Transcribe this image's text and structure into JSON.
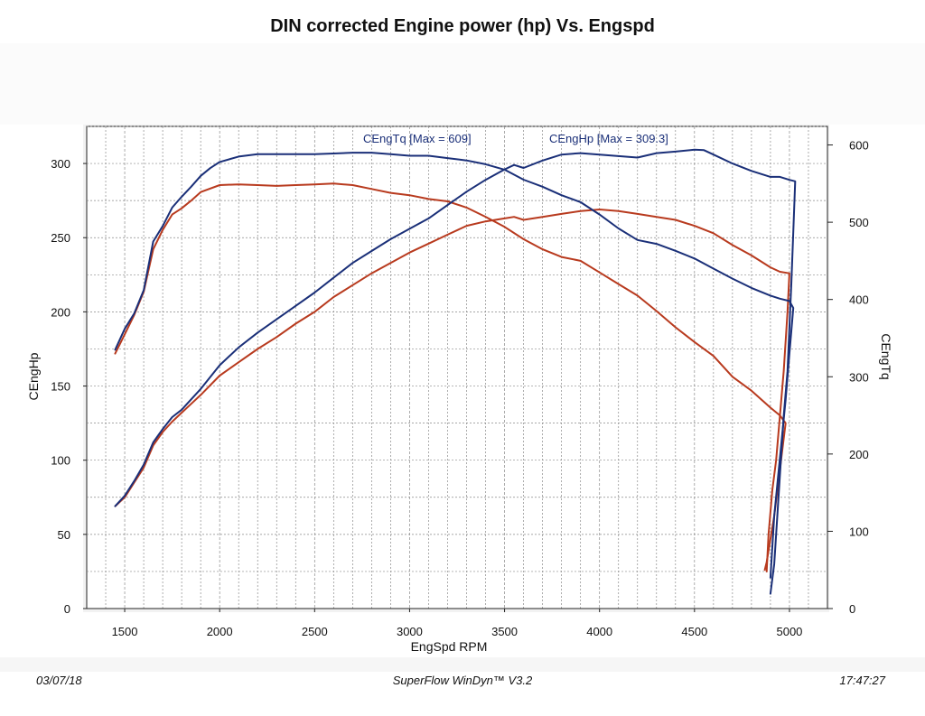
{
  "chart_data": {
    "type": "line",
    "title": "DIN corrected Engine power (hp) Vs. Engspd",
    "xlabel": "EngSpd RPM",
    "ylabel_left": "CEngHp",
    "ylabel_right": "CEngTq",
    "xlim": [
      1300,
      5200
    ],
    "ylim_left": [
      0,
      325
    ],
    "ylim_right": [
      0,
      624
    ],
    "xticks": [
      1500,
      2000,
      2500,
      3000,
      3500,
      4000,
      4500,
      5000
    ],
    "yticks_left": [
      0,
      50,
      100,
      150,
      200,
      250,
      300
    ],
    "yticks_right": [
      0,
      100,
      200,
      300,
      400,
      500,
      600
    ],
    "grid": true,
    "annotations": [
      "CEngTq [Max = 609]",
      "CEngHp [Max = 309.3]"
    ],
    "colors": {
      "run1": "#1a2f78",
      "run2": "#b83a1e"
    },
    "series": [
      {
        "axis": "left",
        "color": "#1a2f78",
        "x": [
          1450,
          1500,
          1550,
          1600,
          1650,
          1700,
          1750,
          1800,
          1850,
          1900,
          2000,
          2100,
          2200,
          2300,
          2400,
          2500,
          2600,
          2700,
          2800,
          2900,
          3000,
          3100,
          3200,
          3300,
          3400,
          3500,
          3550,
          3600,
          3700,
          3800,
          3900,
          4000,
          4100,
          4200,
          4300,
          4400,
          4500,
          4550,
          4600,
          4700,
          4800,
          4900,
          4950,
          5000,
          5030,
          5010,
          4990,
          4970,
          4960,
          4950,
          4940,
          4930,
          4920,
          4910,
          4900
        ],
        "y": [
          69,
          76,
          86,
          97,
          112,
          121,
          129,
          134,
          141,
          148,
          164,
          176,
          186,
          195,
          204,
          213,
          223,
          233,
          241,
          249,
          256,
          263,
          272,
          281,
          289,
          296,
          299,
          297,
          302,
          306,
          307,
          306,
          305,
          304,
          307,
          308,
          309.3,
          309,
          306,
          300,
          295,
          291,
          291,
          289,
          288,
          220,
          160,
          130,
          110,
          90,
          70,
          50,
          30,
          20,
          10
        ]
      },
      {
        "axis": "right",
        "color": "#1a2f78",
        "x": [
          1450,
          1500,
          1550,
          1600,
          1650,
          1700,
          1750,
          1800,
          1850,
          1900,
          1950,
          2000,
          2100,
          2200,
          2300,
          2400,
          2500,
          2600,
          2700,
          2800,
          2900,
          3000,
          3100,
          3200,
          3300,
          3400,
          3500,
          3600,
          3700,
          3800,
          3900,
          4000,
          4100,
          4200,
          4300,
          4400,
          4500,
          4600,
          4700,
          4800,
          4900,
          4950,
          5000,
          5020,
          5000,
          4980,
          4960,
          4940,
          4920,
          4910,
          4900
        ],
        "y": [
          335,
          362,
          382,
          412,
          475,
          495,
          519,
          533,
          546,
          560,
          570,
          578,
          585,
          588,
          588,
          588,
          588,
          589,
          590,
          590,
          588,
          586,
          586,
          583,
          580,
          575,
          568,
          555,
          546,
          535,
          526,
          510,
          492,
          477,
          472,
          463,
          453,
          440,
          427,
          415,
          405,
          401,
          398,
          389,
          330,
          270,
          220,
          170,
          120,
          80,
          40
        ]
      },
      {
        "axis": "left",
        "color": "#b83a1e",
        "x": [
          1450,
          1500,
          1550,
          1600,
          1650,
          1700,
          1750,
          1800,
          1850,
          1900,
          2000,
          2100,
          2200,
          2300,
          2400,
          2500,
          2600,
          2700,
          2800,
          2900,
          3000,
          3100,
          3200,
          3300,
          3400,
          3500,
          3550,
          3600,
          3700,
          3800,
          3900,
          4000,
          4100,
          4200,
          4300,
          4400,
          4500,
          4600,
          4700,
          4800,
          4900,
          4950,
          5000,
          4990,
          4970,
          4950,
          4930,
          4910,
          4890,
          4880
        ],
        "y": [
          69,
          75,
          85,
          95,
          110,
          119,
          126,
          132,
          138,
          144,
          157,
          166,
          175,
          183,
          192,
          200,
          210,
          218,
          226,
          233,
          240,
          246,
          252,
          258,
          261,
          263,
          264,
          262,
          264,
          266,
          268,
          269,
          268,
          266,
          264,
          262,
          258,
          253,
          245,
          238,
          230,
          227,
          226,
          200,
          160,
          130,
          100,
          80,
          50,
          25
        ]
      },
      {
        "axis": "right",
        "color": "#b83a1e",
        "x": [
          1450,
          1500,
          1550,
          1600,
          1650,
          1700,
          1750,
          1800,
          1850,
          1900,
          2000,
          2100,
          2200,
          2300,
          2400,
          2500,
          2600,
          2700,
          2800,
          2900,
          3000,
          3100,
          3200,
          3300,
          3400,
          3500,
          3600,
          3700,
          3800,
          3900,
          4000,
          4100,
          4200,
          4300,
          4400,
          4500,
          4600,
          4700,
          4800,
          4900,
          4950,
          4980,
          4960,
          4940,
          4920,
          4900,
          4880,
          4870
        ],
        "y": [
          330,
          355,
          380,
          410,
          465,
          490,
          510,
          518,
          528,
          539,
          548,
          549,
          548,
          547,
          548,
          549,
          550,
          548,
          543,
          538,
          535,
          530,
          527,
          519,
          507,
          494,
          478,
          465,
          455,
          450,
          435,
          420,
          405,
          385,
          364,
          345,
          327,
          300,
          282,
          260,
          250,
          240,
          200,
          160,
          120,
          90,
          60,
          50
        ]
      }
    ]
  },
  "footer": {
    "date": "03/07/18",
    "software": "SuperFlow WinDyn™ V3.2",
    "time": "17:47:27"
  }
}
